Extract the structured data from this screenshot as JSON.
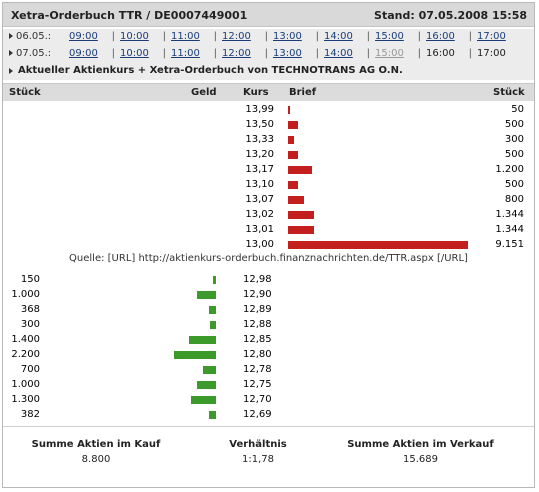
{
  "title": "Xetra-Orderbuch TTR / DE0007449001",
  "stand": "Stand: 07.05.2008 15:58",
  "day_rows": [
    {
      "date": "06.05.:",
      "slots": [
        {
          "label": "09:00",
          "state": "link"
        },
        {
          "label": "10:00",
          "state": "link"
        },
        {
          "label": "11:00",
          "state": "link"
        },
        {
          "label": "12:00",
          "state": "link"
        },
        {
          "label": "13:00",
          "state": "link"
        },
        {
          "label": "14:00",
          "state": "link"
        },
        {
          "label": "15:00",
          "state": "link"
        },
        {
          "label": "16:00",
          "state": "link"
        },
        {
          "label": "17:00",
          "state": "link"
        }
      ]
    },
    {
      "date": "07.05.:",
      "slots": [
        {
          "label": "09:00",
          "state": "link"
        },
        {
          "label": "10:00",
          "state": "link"
        },
        {
          "label": "11:00",
          "state": "link"
        },
        {
          "label": "12:00",
          "state": "link"
        },
        {
          "label": "13:00",
          "state": "link"
        },
        {
          "label": "14:00",
          "state": "link"
        },
        {
          "label": "15:00",
          "state": "disabled"
        },
        {
          "label": "16:00",
          "state": "current"
        },
        {
          "label": "17:00",
          "state": "current"
        }
      ]
    }
  ],
  "current_link": "Aktueller Aktienkurs + Xetra-Orderbuch von TECHNOTRANS AG O.N.",
  "columns": {
    "stueck_left": "Stück",
    "geld": "Geld",
    "kurs": "Kurs",
    "brief": "Brief",
    "stueck_right": "Stück"
  },
  "sell_orders": [
    {
      "price": "13,99",
      "qty": "50",
      "amount": 50
    },
    {
      "price": "13,50",
      "qty": "500",
      "amount": 500
    },
    {
      "price": "13,33",
      "qty": "300",
      "amount": 300
    },
    {
      "price": "13,20",
      "qty": "500",
      "amount": 500
    },
    {
      "price": "13,17",
      "qty": "1.200",
      "amount": 1200
    },
    {
      "price": "13,10",
      "qty": "500",
      "amount": 500
    },
    {
      "price": "13,07",
      "qty": "800",
      "amount": 800
    },
    {
      "price": "13,02",
      "qty": "1.344",
      "amount": 1344
    },
    {
      "price": "13,01",
      "qty": "1.344",
      "amount": 1344
    },
    {
      "price": "13,00",
      "qty": "9.151",
      "amount": 9151
    }
  ],
  "source": "Quelle: [URL] http://aktienkurs-orderbuch.finanznachrichten.de/TTR.aspx [/URL]",
  "buy_orders": [
    {
      "price": "12,98",
      "qty": "150",
      "amount": 150
    },
    {
      "price": "12,90",
      "qty": "1.000",
      "amount": 1000
    },
    {
      "price": "12,89",
      "qty": "368",
      "amount": 368
    },
    {
      "price": "12,88",
      "qty": "300",
      "amount": 300
    },
    {
      "price": "12,85",
      "qty": "1.400",
      "amount": 1400
    },
    {
      "price": "12,80",
      "qty": "2.200",
      "amount": 2200
    },
    {
      "price": "12,78",
      "qty": "700",
      "amount": 700
    },
    {
      "price": "12,75",
      "qty": "1.000",
      "amount": 1000
    },
    {
      "price": "12,70",
      "qty": "1.300",
      "amount": 1300
    },
    {
      "price": "12,69",
      "qty": "382",
      "amount": 382
    }
  ],
  "summary": {
    "kauf_label": "Summe Aktien im Kauf",
    "kauf_value": "8.800",
    "ratio_label": "Verhältnis",
    "ratio_value": "1:1,78",
    "verkauf_label": "Summe Aktien im Verkauf",
    "verkauf_value": "15.689"
  },
  "colors": {
    "sell_bar": "#c41f1f",
    "buy_bar": "#3b9a2a"
  }
}
